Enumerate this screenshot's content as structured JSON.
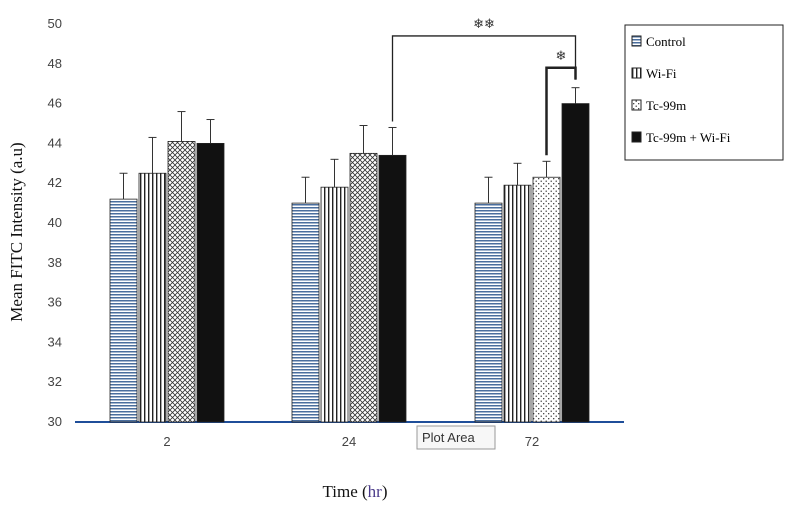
{
  "chart_data": {
    "type": "bar",
    "ylabel": "Mean FITC Intensity (a.u)",
    "xlabel_prefix": "Time (",
    "xlabel_unit": "hr",
    "xlabel_suffix": ")",
    "ylim": [
      30,
      50
    ],
    "yticks": [
      "30",
      "32",
      "34",
      "36",
      "38",
      "40",
      "42",
      "44",
      "46",
      "48",
      "50"
    ],
    "categories": [
      "2",
      "24",
      "72"
    ],
    "series": [
      {
        "name": "Control",
        "values": [
          41.2,
          41.0,
          41.0
        ],
        "errors": [
          1.3,
          1.3,
          1.3
        ],
        "fill": "hstripe"
      },
      {
        "name": "Wi-Fi",
        "values": [
          42.5,
          41.8,
          41.9
        ],
        "errors": [
          1.8,
          1.4,
          1.1
        ],
        "fill": "vstripe"
      },
      {
        "name": "Tc-99m",
        "values": [
          44.1,
          43.5,
          42.3
        ],
        "errors": [
          1.5,
          1.4,
          0.8
        ],
        "fill": "crosshatch"
      },
      {
        "name": "Tc-99m + Wi-Fi",
        "values": [
          44.0,
          43.4,
          46.0
        ],
        "errors": [
          1.2,
          1.4,
          0.8
        ],
        "fill": "solid"
      }
    ],
    "significance": [
      {
        "label": "❄❄",
        "from": {
          "category": 1,
          "series": 3
        },
        "to": {
          "category": 2,
          "series": 3
        }
      },
      {
        "label": "❄",
        "from": {
          "category": 2,
          "series": 2
        },
        "to": {
          "category": 2,
          "series": 3
        }
      }
    ],
    "legend_position": "top-right",
    "grid": false,
    "tooltip": "Plot Area",
    "colors": {
      "control": "#4a6e9e",
      "solid": "#111111",
      "axis": "#1f4e99"
    }
  }
}
